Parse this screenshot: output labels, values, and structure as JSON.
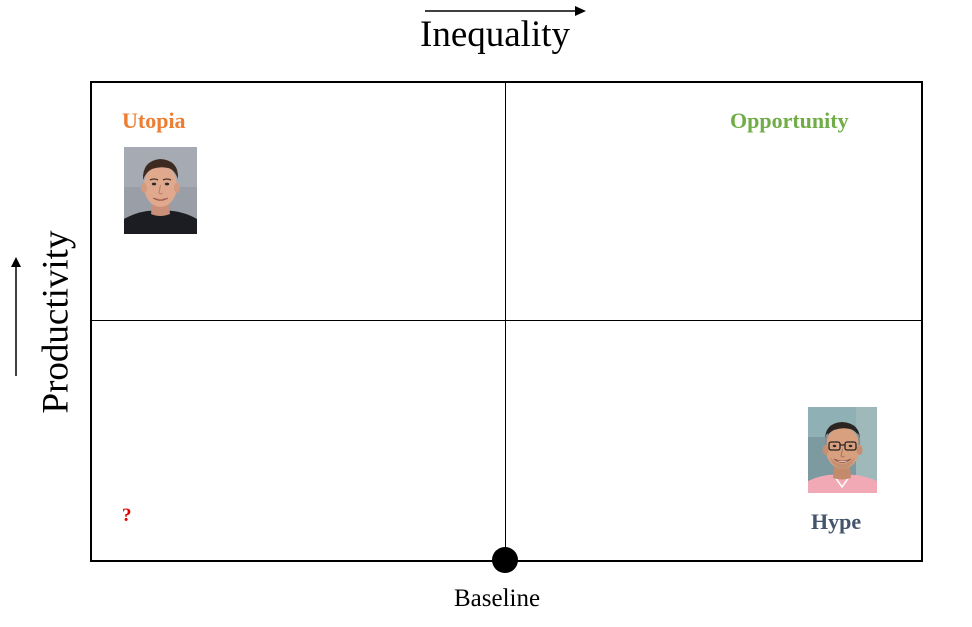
{
  "axes": {
    "x_title": "Inequality",
    "y_title": "Productivity"
  },
  "quadrants": {
    "top_left": {
      "label": "Utopia",
      "color": "#ED7D31"
    },
    "top_right": {
      "label": "Opportunity",
      "color": "#70AD47"
    },
    "bottom_left": {
      "label": "?",
      "color": "#E00000"
    },
    "bottom_right": {
      "label": "Hype",
      "color": "#44546A"
    }
  },
  "origin": {
    "label": "Baseline"
  },
  "icons": {
    "top_left_portrait": "person-portrait-icon",
    "bottom_right_portrait": "person-portrait-icon",
    "origin_marker": "dot-icon"
  }
}
